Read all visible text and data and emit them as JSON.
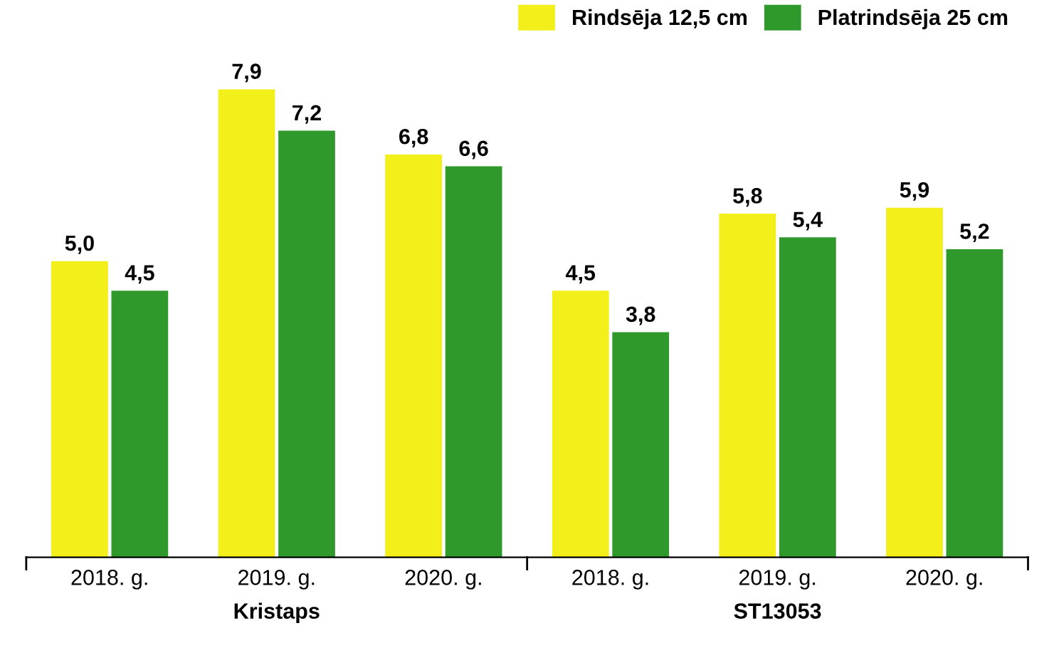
{
  "chart_data": {
    "type": "bar",
    "categories": [
      "2018. g.",
      "2019. g.",
      "2020. g.",
      "2018. g.",
      "2019. g.",
      "2020. g."
    ],
    "series": [
      {
        "name": "Rindsēja 12,5 cm",
        "color": "#f2ef1a",
        "values": [
          5.0,
          7.9,
          6.8,
          4.5,
          5.8,
          5.9
        ],
        "value_labels": [
          "5,0",
          "7,9",
          "6,8",
          "4,5",
          "5,8",
          "5,9"
        ]
      },
      {
        "name": "Platrindsēja 25 cm",
        "color": "#2f9a2b",
        "values": [
          4.5,
          7.2,
          6.6,
          3.8,
          5.4,
          5.2
        ],
        "value_labels": [
          "4,5",
          "7,2",
          "6,6",
          "3,8",
          "5,4",
          "5,2"
        ]
      }
    ],
    "annotations": [
      "Kristaps",
      "ST13053"
    ],
    "legend": "top right",
    "grid": false
  }
}
